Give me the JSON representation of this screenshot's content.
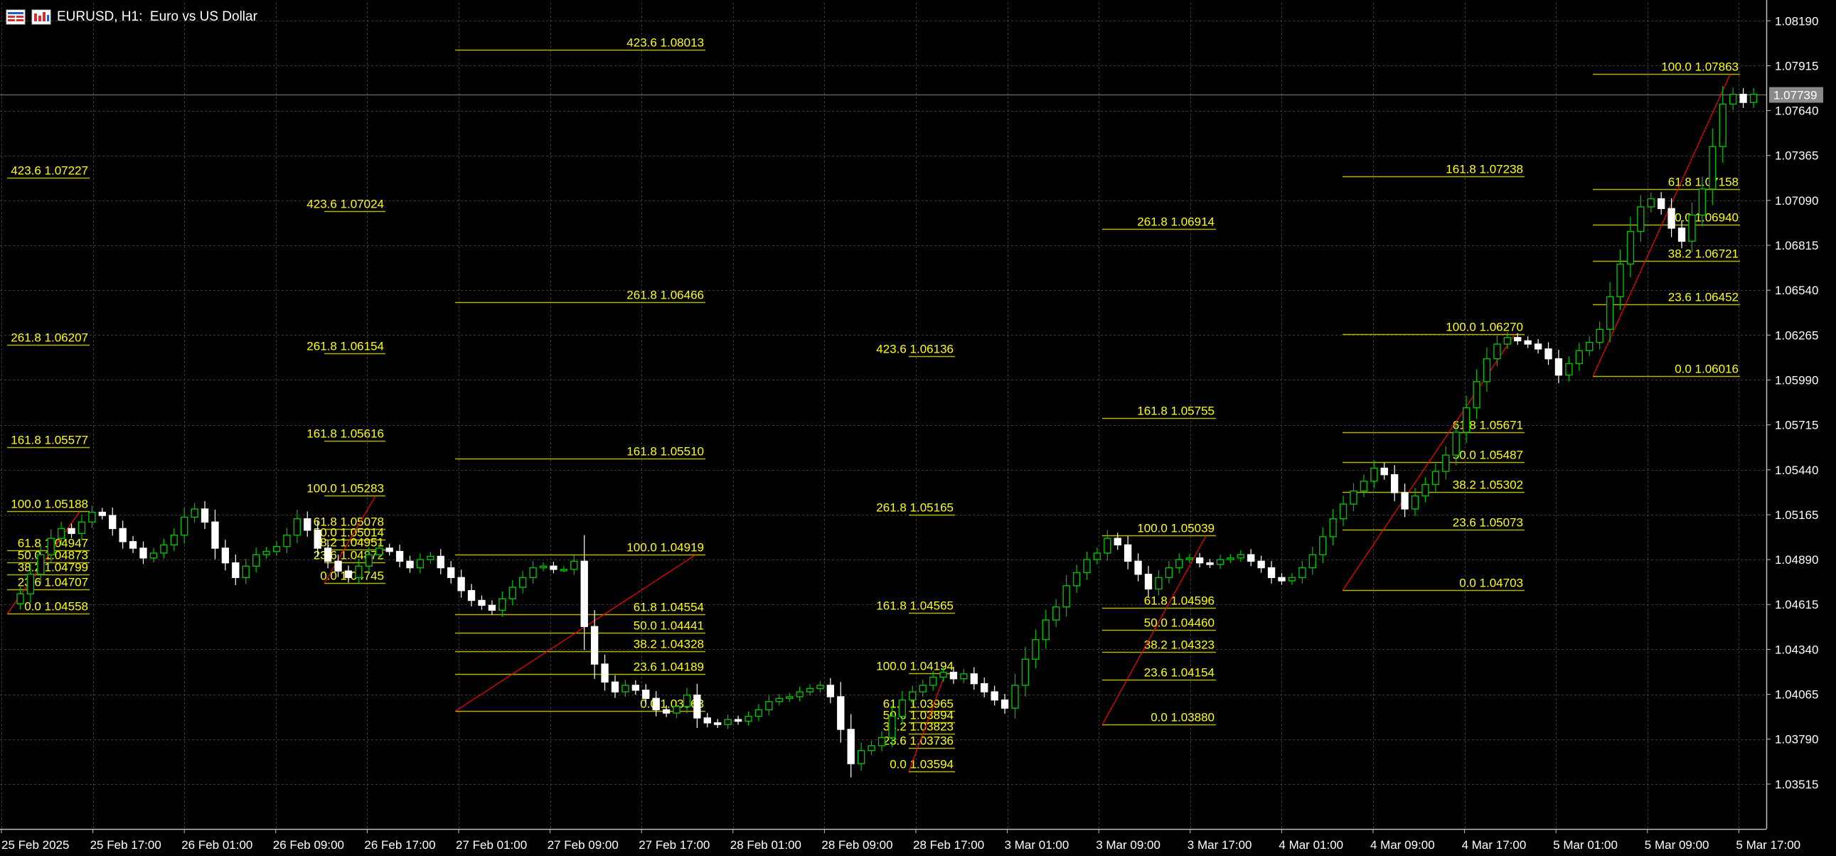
{
  "header": {
    "title": "EURUSD, H1:  Euro vs US Dollar"
  },
  "colors": {
    "background": "#000000",
    "grid": "#3a3a3a",
    "text": "#ffffff",
    "fib_level": "#b4b400",
    "fib_text": "#ffff00",
    "fib_trend": "#ff0000",
    "candle_bull": "#00c000",
    "candle_bear": "#ffffff",
    "wick": "#ffffff",
    "price_line": "#7f7f7f"
  },
  "chart_data": {
    "type": "candlestick",
    "symbol": "EURUSD",
    "timeframe": "H1",
    "current_price": "1.07739",
    "y_ticks": [
      "1.08190",
      "1.07915",
      "1.07640",
      "1.07365",
      "1.07090",
      "1.06815",
      "1.06540",
      "1.06265",
      "1.05990",
      "1.05715",
      "1.05440",
      "1.05165",
      "1.04890",
      "1.04615",
      "1.04340",
      "1.04065",
      "1.03790",
      "1.03515"
    ],
    "ylim": [
      1.0324,
      1.083
    ],
    "x_ticks": [
      "25 Feb 2025",
      "25 Feb 17:00",
      "26 Feb 01:00",
      "26 Feb 09:00",
      "26 Feb 17:00",
      "27 Feb 01:00",
      "27 Feb 09:00",
      "27 Feb 17:00",
      "28 Feb 01:00",
      "28 Feb 09:00",
      "28 Feb 17:00",
      "3 Mar 01:00",
      "3 Mar 09:00",
      "3 Mar 17:00",
      "4 Mar 01:00",
      "4 Mar 09:00",
      "4 Mar 17:00",
      "5 Mar 01:00",
      "5 Mar 09:00",
      "5 Mar 17:00"
    ],
    "price_path": [
      1.0462,
      1.0468,
      1.048,
      1.0492,
      1.0502,
      1.0508,
      1.0505,
      1.0512,
      1.0518,
      1.0516,
      1.0508,
      1.05,
      1.0496,
      1.049,
      1.0493,
      1.0498,
      1.0504,
      1.0515,
      1.052,
      1.0512,
      1.0496,
      1.0487,
      1.0478,
      1.0485,
      1.0492,
      1.0494,
      1.0497,
      1.0504,
      1.0514,
      1.0507,
      1.0496,
      1.0488,
      1.0482,
      1.0478,
      1.0485,
      1.0492,
      1.0496,
      1.0494,
      1.0488,
      1.0484,
      1.0489,
      1.0491,
      1.0484,
      1.0478,
      1.047,
      1.0464,
      1.0461,
      1.0458,
      1.0465,
      1.0472,
      1.0478,
      1.0484,
      1.0485,
      1.0483,
      1.0483,
      1.0488,
      1.0448,
      1.0425,
      1.0414,
      1.0408,
      1.0412,
      1.0409,
      1.0404,
      1.0397,
      1.0395,
      1.0399,
      1.0406,
      1.0392,
      1.0389,
      1.0388,
      1.0391,
      1.039,
      1.0393,
      1.0397,
      1.0402,
      1.0404,
      1.0405,
      1.0408,
      1.041,
      1.0412,
      1.0405,
      1.0385,
      1.0364,
      1.0372,
      1.0375,
      1.038,
      1.0393,
      1.0403,
      1.0408,
      1.0412,
      1.0417,
      1.042,
      1.0416,
      1.0419,
      1.0413,
      1.0408,
      1.0403,
      1.0398,
      1.0412,
      1.0428,
      1.044,
      1.0452,
      1.046,
      1.0473,
      1.0481,
      1.0489,
      1.0493,
      1.0502,
      1.0498,
      1.0488,
      1.048,
      1.0471,
      1.0478,
      1.0484,
      1.0489,
      1.049,
      1.0487,
      1.0486,
      1.0489,
      1.049,
      1.0492,
      1.0488,
      1.0484,
      1.0478,
      1.0476,
      1.0478,
      1.0484,
      1.0492,
      1.0503,
      1.0514,
      1.0523,
      1.0531,
      1.0537,
      1.0545,
      1.0541,
      1.053,
      1.052,
      1.0528,
      1.0535,
      1.0543,
      1.0553,
      1.0567,
      1.0582,
      1.0598,
      1.0612,
      1.0621,
      1.0625,
      1.0623,
      1.0621,
      1.0618,
      1.0612,
      1.0602,
      1.0609,
      1.0617,
      1.0622,
      1.063,
      1.065,
      1.067,
      1.069,
      1.0705,
      1.071,
      1.0704,
      1.0692,
      1.0684,
      1.07,
      1.0716,
      1.0742,
      1.0768,
      1.0774,
      1.0769,
      1.0774
    ],
    "fibonacci": [
      {
        "levels": [
          {
            "pct": "423.6",
            "price": "1.07227"
          },
          {
            "pct": "261.8",
            "price": "1.06207"
          },
          {
            "pct": "161.8",
            "price": "1.05577"
          },
          {
            "pct": "100.0",
            "price": "1.05188"
          },
          {
            "pct": "61.8",
            "price": "1.04947"
          },
          {
            "pct": "50.0",
            "price": "1.04873"
          },
          {
            "pct": "38.2",
            "price": "1.04799"
          },
          {
            "pct": "23.6",
            "price": "1.04707"
          },
          {
            "pct": "0.0",
            "price": "1.04558"
          }
        ]
      },
      {
        "levels": [
          {
            "pct": "423.6",
            "price": "1.07024"
          },
          {
            "pct": "261.8",
            "price": "1.06154"
          },
          {
            "pct": "161.8",
            "price": "1.05616"
          },
          {
            "pct": "100.0",
            "price": "1.05283"
          },
          {
            "pct": "61.8",
            "price": "1.05078"
          },
          {
            "pct": "50.0",
            "price": "1.05014"
          },
          {
            "pct": "38.2",
            "price": "1.04951"
          },
          {
            "pct": "23.6",
            "price": "1.04872"
          },
          {
            "pct": "0.0",
            "price": "1.04745"
          }
        ]
      },
      {
        "levels": [
          {
            "pct": "423.6",
            "price": "1.08013"
          },
          {
            "pct": "261.8",
            "price": "1.06466"
          },
          {
            "pct": "161.8",
            "price": "1.05510"
          },
          {
            "pct": "100.0",
            "price": "1.04919"
          },
          {
            "pct": "61.8",
            "price": "1.04554"
          },
          {
            "pct": "50.0",
            "price": "1.04441"
          },
          {
            "pct": "38.2",
            "price": "1.04328"
          },
          {
            "pct": "23.6",
            "price": "1.04189"
          },
          {
            "pct": "0.0",
            "price": "1.03963"
          }
        ]
      },
      {
        "levels": [
          {
            "pct": "423.6",
            "price": "1.06136"
          },
          {
            "pct": "261.8",
            "price": "1.05165"
          },
          {
            "pct": "161.8",
            "price": "1.04565"
          },
          {
            "pct": "100.0",
            "price": "1.04194"
          },
          {
            "pct": "61.8",
            "price": "1.03965"
          },
          {
            "pct": "50.0",
            "price": "1.03894"
          },
          {
            "pct": "38.2",
            "price": "1.03823"
          },
          {
            "pct": "23.6",
            "price": "1.03736"
          },
          {
            "pct": "0.0",
            "price": "1.03594"
          }
        ]
      },
      {
        "levels": [
          {
            "pct": "261.8",
            "price": "1.06914"
          },
          {
            "pct": "161.8",
            "price": "1.05755"
          },
          {
            "pct": "100.0",
            "price": "1.05039"
          },
          {
            "pct": "61.8",
            "price": "1.04596"
          },
          {
            "pct": "50.0",
            "price": "1.04460"
          },
          {
            "pct": "38.2",
            "price": "1.04323"
          },
          {
            "pct": "23.6",
            "price": "1.04154"
          },
          {
            "pct": "0.0",
            "price": "1.03880"
          }
        ]
      },
      {
        "levels": [
          {
            "pct": "161.8",
            "price": "1.07238"
          },
          {
            "pct": "100.0",
            "price": "1.06270"
          },
          {
            "pct": "61.8",
            "price": "1.05671"
          },
          {
            "pct": "50.0",
            "price": "1.05487"
          },
          {
            "pct": "38.2",
            "price": "1.05302"
          },
          {
            "pct": "23.6",
            "price": "1.05073"
          },
          {
            "pct": "0.0",
            "price": "1.04703"
          }
        ]
      },
      {
        "levels": [
          {
            "pct": "100.0",
            "price": "1.07863"
          },
          {
            "pct": "61.8",
            "price": "1.07158"
          },
          {
            "pct": "50.0",
            "price": "1.06940"
          },
          {
            "pct": "38.2",
            "price": "1.06721"
          },
          {
            "pct": "23.6",
            "price": "1.06452"
          },
          {
            "pct": "0.0",
            "price": "1.06016"
          }
        ]
      }
    ]
  }
}
